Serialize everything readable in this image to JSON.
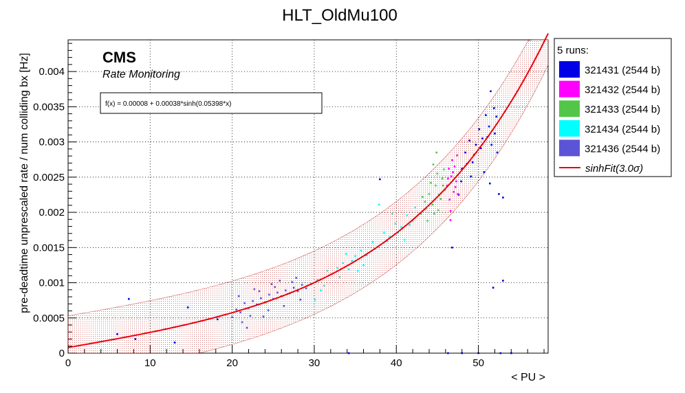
{
  "chart_data": {
    "type": "scatter",
    "title": "HLT_OldMu100",
    "xlabel": "< PU >",
    "ylabel": "pre-deadtime unprescaled rate / num colliding bx [Hz]",
    "xlim": [
      0,
      58.5
    ],
    "ylim": [
      0,
      0.00445
    ],
    "x_ticks": [
      0,
      10,
      20,
      30,
      40,
      50
    ],
    "x_tick_labels": [
      "0",
      "10",
      "20",
      "30",
      "40",
      "50"
    ],
    "y_ticks": [
      0,
      0.0005,
      0.001,
      0.0015,
      0.002,
      0.0025,
      0.003,
      0.0035,
      0.004
    ],
    "y_tick_labels": [
      "0",
      "0.0005",
      "0.001",
      "0.0015",
      "0.002",
      "0.0025",
      "0.003",
      "0.0035",
      "0.004"
    ],
    "grid": true,
    "cms_label": "CMS",
    "cms_sublabel": "Rate Monitoring",
    "formula_box": "f(x) = 0.00008 + 0.00038*sinh(0.05398*x)",
    "fit": {
      "a": 8e-05,
      "b": 0.00038,
      "c": 0.05398,
      "band_sigma": 3.0,
      "band_width": 0.00045,
      "color": "#e8000b",
      "band_color": "#b00000"
    },
    "legend": {
      "placement": "right",
      "header": "5 runs:",
      "entries": [
        {
          "label": "321431 (2544 b)",
          "color": "#0000e6"
        },
        {
          "label": "321432 (2544 b)",
          "color": "#ff00ff"
        },
        {
          "label": "321433 (2544 b)",
          "color": "#53c64a"
        },
        {
          "label": "321434 (2544 b)",
          "color": "#00ffff"
        },
        {
          "label": "321436 (2544 b)",
          "color": "#5b54d6"
        }
      ],
      "fit_label": "sinhFit(3.0σ)"
    },
    "series": [
      {
        "name": "321431 (2544 b)",
        "color": "#0000e6",
        "points": [
          [
            47.6,
            0.00225
          ],
          [
            48.0,
            0.00262
          ],
          [
            48.4,
            0.00285
          ],
          [
            48.9,
            0.00302
          ],
          [
            49.3,
            0.00271
          ],
          [
            49.7,
            0.00296
          ],
          [
            50.1,
            0.00318
          ],
          [
            50.5,
            0.00305
          ],
          [
            50.9,
            0.00338
          ],
          [
            51.3,
            0.00322
          ],
          [
            51.6,
            0.00296
          ],
          [
            52.0,
            0.00312
          ],
          [
            52.3,
            0.00285
          ],
          [
            47.9,
            0.00244
          ],
          [
            48.6,
            0.00269
          ],
          [
            49.5,
            0.00282
          ],
          [
            50.3,
            0.00291
          ],
          [
            51.1,
            0.00307
          ],
          [
            51.5,
            0.00372
          ],
          [
            51.9,
            0.00348
          ],
          [
            52.2,
            0.00336
          ],
          [
            50.7,
            0.00257
          ],
          [
            49.1,
            0.00251
          ],
          [
            51.4,
            0.00241
          ],
          [
            52.5,
            0.00226
          ],
          [
            53.0,
            0.00221
          ],
          [
            51.8,
            0.00093
          ],
          [
            53.0,
            0.00103
          ],
          [
            46.8,
            0.0015
          ],
          [
            38.0,
            0.00247
          ],
          [
            6.0,
            0.00027
          ],
          [
            7.4,
            0.00077
          ],
          [
            8.2,
            0.0002
          ],
          [
            13.0,
            0.00015
          ],
          [
            14.6,
            0.00065
          ],
          [
            18.2,
            0.00048
          ],
          [
            34.2,
            0.0
          ],
          [
            46.3,
            0.0
          ],
          [
            48.0,
            0.0
          ],
          [
            50.0,
            0.0
          ],
          [
            52.7,
            0.0
          ],
          [
            54.0,
            0.0
          ]
        ]
      },
      {
        "name": "321432 (2544 b)",
        "color": "#ff00ff",
        "points": [
          [
            46.2,
            0.00238
          ],
          [
            46.4,
            0.00262
          ],
          [
            46.5,
            0.00218
          ],
          [
            46.7,
            0.00251
          ],
          [
            46.8,
            0.00274
          ],
          [
            47.0,
            0.00229
          ],
          [
            47.1,
            0.00265
          ],
          [
            47.3,
            0.00244
          ],
          [
            47.4,
            0.00281
          ],
          [
            46.6,
            0.00202
          ],
          [
            46.9,
            0.00257
          ],
          [
            47.2,
            0.00236
          ],
          [
            46.3,
            0.00248
          ],
          [
            47.5,
            0.00226
          ],
          [
            46.6,
            0.00189
          ]
        ]
      },
      {
        "name": "321433 (2544 b)",
        "color": "#53c64a",
        "points": [
          [
            43.0,
            0.00198
          ],
          [
            43.5,
            0.00215
          ],
          [
            44.0,
            0.00226
          ],
          [
            44.4,
            0.00211
          ],
          [
            44.8,
            0.00238
          ],
          [
            45.2,
            0.00225
          ],
          [
            45.6,
            0.00248
          ],
          [
            45.9,
            0.00232
          ],
          [
            43.2,
            0.00222
          ],
          [
            43.8,
            0.00188
          ],
          [
            44.2,
            0.00242
          ],
          [
            44.6,
            0.00198
          ],
          [
            45.0,
            0.00255
          ],
          [
            45.4,
            0.00219
          ],
          [
            45.8,
            0.00261
          ],
          [
            44.5,
            0.00268
          ],
          [
            44.9,
            0.00285
          ],
          [
            43.6,
            0.00205
          ],
          [
            45.1,
            0.00203
          ],
          [
            45.7,
            0.00238
          ]
        ]
      },
      {
        "name": "321434 (2544 b)",
        "color": "#00ffff",
        "points": [
          [
            29.6,
            0.00098
          ],
          [
            30.4,
            0.00104
          ],
          [
            31.2,
            0.00096
          ],
          [
            32.0,
            0.00112
          ],
          [
            32.8,
            0.00121
          ],
          [
            33.5,
            0.00128
          ],
          [
            34.2,
            0.00119
          ],
          [
            35.0,
            0.00138
          ],
          [
            35.7,
            0.00146
          ],
          [
            36.4,
            0.00139
          ],
          [
            37.1,
            0.00158
          ],
          [
            37.8,
            0.00152
          ],
          [
            38.5,
            0.00171
          ],
          [
            39.2,
            0.00165
          ],
          [
            39.9,
            0.00184
          ],
          [
            40.6,
            0.00179
          ],
          [
            41.3,
            0.00196
          ],
          [
            42.0,
            0.00188
          ],
          [
            30.8,
            0.00089
          ],
          [
            31.6,
            0.00117
          ],
          [
            33.1,
            0.00108
          ],
          [
            34.6,
            0.00131
          ],
          [
            36.0,
            0.00125
          ],
          [
            37.4,
            0.00148
          ],
          [
            38.9,
            0.00159
          ],
          [
            40.2,
            0.00171
          ],
          [
            41.6,
            0.00182
          ],
          [
            35.3,
            0.00117
          ],
          [
            39.5,
            0.00198
          ],
          [
            42.3,
            0.00207
          ],
          [
            37.9,
            0.00211
          ],
          [
            33.9,
            0.00141
          ],
          [
            30.1,
            0.00076
          ],
          [
            41.0,
            0.00161
          ]
        ]
      },
      {
        "name": "321436 (2544 b)",
        "color": "#5b54d6",
        "points": [
          [
            20.0,
            0.00051
          ],
          [
            20.5,
            0.00062
          ],
          [
            21.0,
            0.00058
          ],
          [
            21.5,
            0.00071
          ],
          [
            22.0,
            0.00064
          ],
          [
            22.5,
            0.00074
          ],
          [
            23.0,
            0.00069
          ],
          [
            23.5,
            0.00078
          ],
          [
            24.0,
            0.00072
          ],
          [
            24.5,
            0.00083
          ],
          [
            25.0,
            0.00077
          ],
          [
            25.5,
            0.00086
          ],
          [
            26.0,
            0.00081
          ],
          [
            26.5,
            0.00089
          ],
          [
            27.0,
            0.00085
          ],
          [
            27.5,
            0.00093
          ],
          [
            28.0,
            0.00088
          ],
          [
            28.5,
            0.00097
          ],
          [
            29.0,
            0.00092
          ],
          [
            21.2,
            0.00044
          ],
          [
            22.2,
            0.00053
          ],
          [
            23.3,
            0.00088
          ],
          [
            24.4,
            0.00061
          ],
          [
            25.2,
            0.00094
          ],
          [
            26.3,
            0.00067
          ],
          [
            27.3,
            0.00101
          ],
          [
            28.3,
            0.00076
          ],
          [
            20.8,
            0.00081
          ],
          [
            21.8,
            0.00036
          ],
          [
            23.8,
            0.00052
          ],
          [
            25.8,
            0.00103
          ],
          [
            27.8,
            0.00107
          ],
          [
            22.7,
            0.00091
          ],
          [
            24.8,
            0.00098
          ]
        ]
      }
    ]
  }
}
